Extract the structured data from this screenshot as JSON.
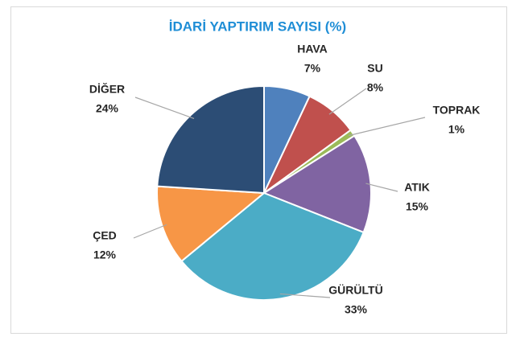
{
  "chart_data": {
    "type": "pie",
    "title": "İDARİ YAPTIRIM SAYISI (%)",
    "categories": [
      "HAVA",
      "SU",
      "TOPRAK",
      "ATIK",
      "GÜRÜLTÜ",
      "ÇED",
      "DİĞER"
    ],
    "values": [
      7,
      8,
      1,
      15,
      33,
      12,
      24
    ],
    "value_labels": [
      "7%",
      "8%",
      "1%",
      "15%",
      "33%",
      "12%",
      "24%"
    ],
    "colors": [
      "#4f81bd",
      "#c0504d",
      "#9bbb59",
      "#8064a2",
      "#4bacc6",
      "#f79646",
      "#2c4d75"
    ]
  }
}
